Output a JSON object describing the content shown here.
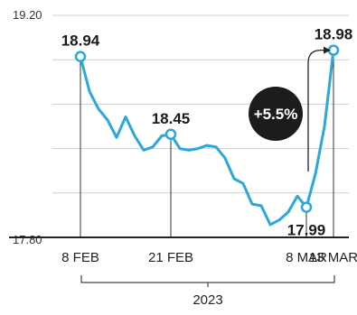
{
  "chart_data": {
    "type": "line",
    "ylim": [
      17.8,
      19.2
    ],
    "yticks": [
      "19.20",
      "17.80"
    ],
    "series": [
      {
        "values": [
          18.94,
          18.72,
          18.61,
          18.54,
          18.43,
          18.56,
          18.44,
          18.35,
          18.37,
          18.44,
          18.45,
          18.36,
          18.35,
          18.36,
          18.38,
          18.37,
          18.3,
          18.17,
          18.14,
          18.01,
          18.0,
          17.88,
          17.91,
          17.96,
          18.06,
          17.99,
          18.2,
          18.5,
          18.98
        ],
        "color": "#2aa8dc"
      }
    ],
    "x_labels": [
      "8 FEB",
      "21 FEB",
      "8 MAR",
      "13 MAR"
    ],
    "x_label_index": [
      0,
      10,
      25,
      28
    ],
    "point_labels": [
      {
        "index": 0,
        "text": "18.94"
      },
      {
        "index": 10,
        "text": "18.45"
      },
      {
        "index": 25,
        "text": "17.99"
      },
      {
        "index": 28,
        "text": "18.98"
      }
    ],
    "annotation": {
      "text": "+5.5%",
      "from_index": 25,
      "to_index": 28
    },
    "year_label": "2023",
    "grid": true
  }
}
